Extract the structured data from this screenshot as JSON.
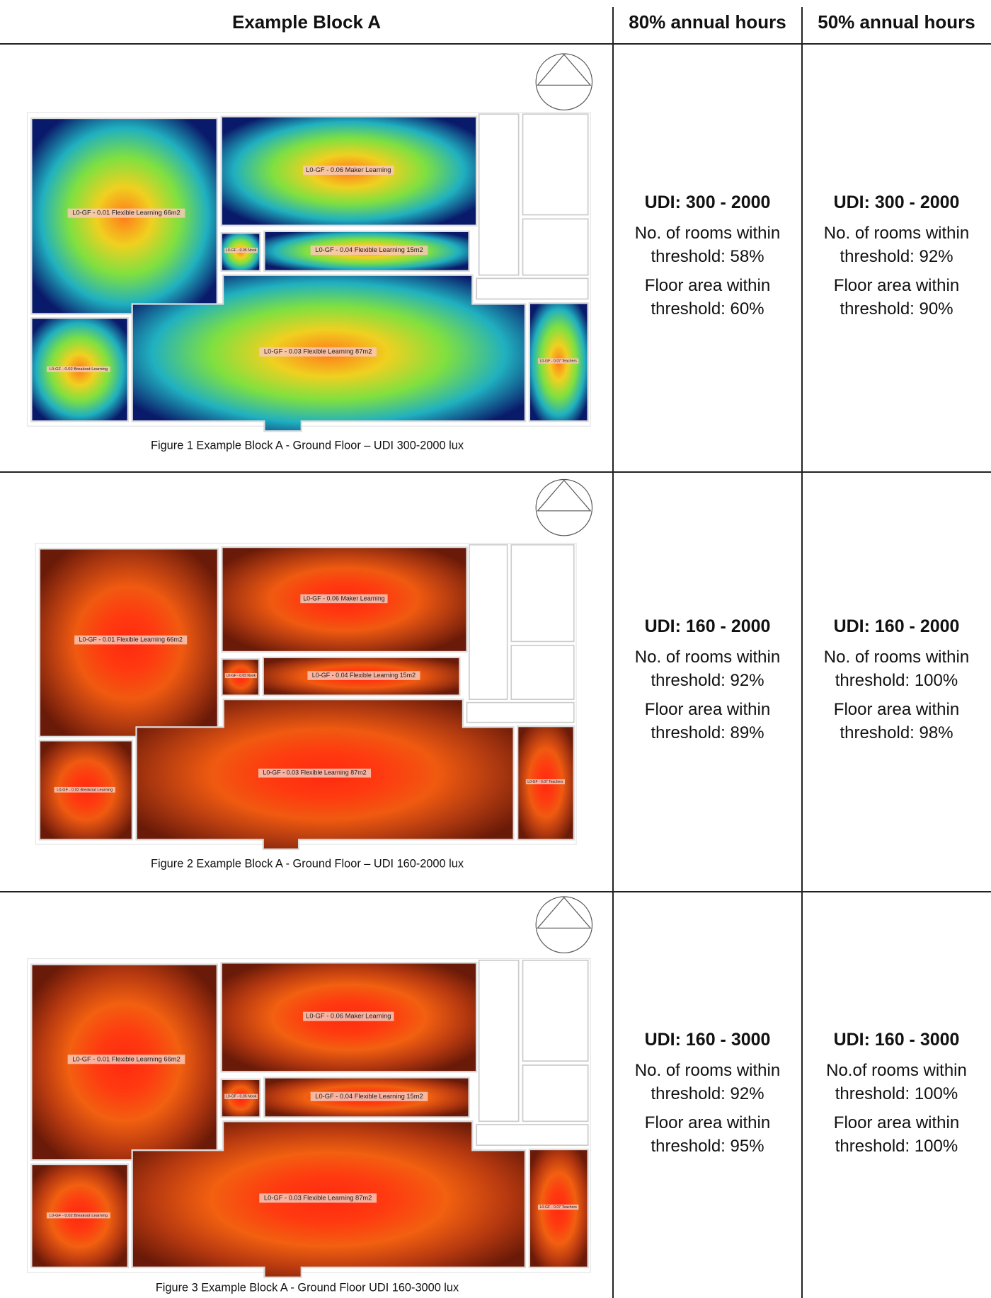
{
  "header": {
    "col1": "Example Block A",
    "col2": "80% annual hours",
    "col3": "50% annual hours"
  },
  "rows": [
    {
      "figure": {
        "rooms": [
          "L0-GF - 0.01 Flexible Learning 66m2",
          "L0-GF - 0.06 Maker Learning",
          "L0-GF - 0.05 Nook",
          "L0-GF - 0.04 Flexible Learning 15m2",
          "L0-GF - 0.03 Flexible Learning 87m2",
          "L0-GF - 0.02 Breakout Learning",
          "L0-GF - 0.07 Teachers"
        ],
        "caption": "Figure 1 Example Block A - Ground Floor – UDI 300-2000 lux"
      },
      "cells": [
        {
          "udi": "UDI: 300 - 2000",
          "rooms": "No. of rooms within threshold: 58%",
          "area": "Floor area within threshold: 60%"
        },
        {
          "udi": "UDI: 300 - 2000",
          "rooms": "No. of rooms within threshold: 92%",
          "area": "Floor area within threshold: 90%"
        }
      ]
    },
    {
      "figure": {
        "rooms": [
          "L0-GF - 0.01 Flexible Learning 66m2",
          "L0-GF - 0.06 Maker Learning",
          "L0-GF - 0.05 Nook",
          "L0-GF - 0.04 Flexible Learning 15m2",
          "L0-GF - 0.03 Flexible Learning 87m2",
          "L0-GF - 0.02 Breakout Learning",
          "L0-GF - 0.07 Teachers"
        ],
        "caption": "Figure 2 Example Block A - Ground Floor – UDI 160-2000 lux"
      },
      "cells": [
        {
          "udi": "UDI: 160 - 2000",
          "rooms": "No. of rooms within threshold: 92%",
          "area": "Floor area within threshold: 89%"
        },
        {
          "udi": "UDI: 160 - 2000",
          "rooms": "No. of rooms within threshold: 100%",
          "area": "Floor area within threshold: 98%"
        }
      ]
    },
    {
      "figure": {
        "rooms": [
          "L0-GF - 0.01 Flexible Learning 66m2",
          "L0-GF - 0.06 Maker Learning",
          "L0-GF - 0.05 Nook",
          "L0-GF - 0.04 Flexible Learning 15m2",
          "L0-GF - 0.03 Flexible Learning 87m2",
          "L0-GF - 0.02 Breakout Learning",
          "L0-GF - 0.07 Teachers"
        ],
        "caption": "Figure 3 Example Block A - Ground Floor UDI 160-3000 lux"
      },
      "cells": [
        {
          "udi": "UDI: 160 - 3000",
          "rooms": "No. of rooms within threshold: 92%",
          "area": "Floor area within threshold: 95%"
        },
        {
          "udi": "UDI: 160 - 3000",
          "rooms": "No.of rooms within threshold: 100%",
          "area": "Floor area within threshold: 100%"
        }
      ]
    }
  ]
}
